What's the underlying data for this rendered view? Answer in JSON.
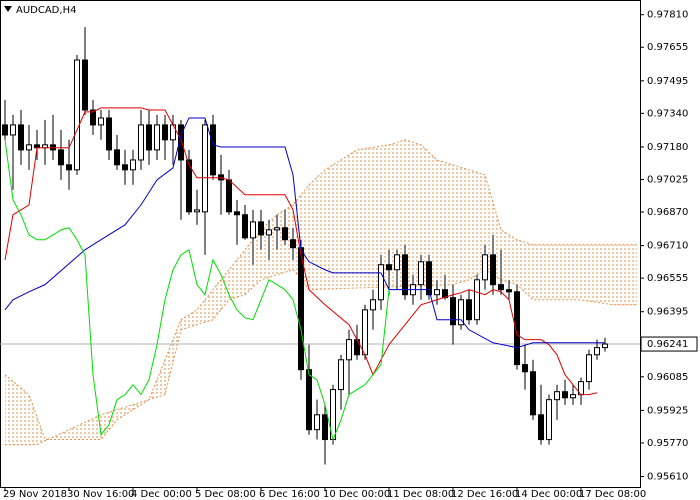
{
  "chart_data": {
    "type": "candlestick",
    "title": "AUDCAD,H4",
    "categories": [
      "29 Nov 2018",
      null,
      null,
      null,
      null,
      null,
      null,
      null,
      "30 Nov 16:00",
      null,
      null,
      null,
      null,
      null,
      null,
      null,
      "4 Dec 00:00",
      null,
      null,
      null,
      null,
      null,
      null,
      null,
      "5 Dec 08:00",
      null,
      null,
      null,
      null,
      null,
      null,
      null,
      "6 Dec 16:00",
      null,
      null,
      null,
      null,
      null,
      null,
      null,
      "10 Dec 00:00",
      null,
      null,
      null,
      null,
      null,
      null,
      null,
      "11 Dec 08:00",
      null,
      null,
      null,
      null,
      null,
      null,
      null,
      "12 Dec 16:00",
      null,
      null,
      null,
      null,
      null,
      null,
      null,
      "14 Dec 00:00",
      null,
      null,
      null,
      null,
      null,
      null,
      null,
      "17 Dec 08:00",
      null,
      null,
      null
    ],
    "ohlc": {
      "open": [
        0.97285,
        0.97237,
        0.97285,
        0.97166,
        0.9719,
        0.97176,
        0.9719,
        0.97166,
        0.97095,
        0.97071,
        0.97594,
        0.97356,
        0.97285,
        0.97318,
        0.97166,
        0.97095,
        0.97071,
        0.97118,
        0.97285,
        0.97166,
        0.97285,
        0.97214,
        0.97285,
        0.97118,
        0.96871,
        0.96871,
        0.97285,
        0.97047,
        0.97023,
        0.96871,
        0.96857,
        0.96747,
        0.96823,
        0.96761,
        0.96785,
        0.96795,
        0.96738,
        0.967,
        0.96119,
        0.95833,
        0.95904,
        0.95786,
        0.96024,
        0.96166,
        0.96262,
        0.9619,
        0.96404,
        0.96452,
        0.96619,
        0.96595,
        0.96666,
        0.96476,
        0.96524,
        0.96633,
        0.96476,
        0.965,
        0.96462,
        0.96333,
        0.96452,
        0.96357,
        0.96547,
        0.96666,
        0.96524,
        0.965,
        0.9649,
        0.96143,
        0.96109,
        0.95904,
        0.95786,
        0.95976,
        0.96014,
        0.95985,
        0.96,
        0.96062,
        0.9619,
        0.96224
      ],
      "high": [
        0.97404,
        0.97333,
        0.97356,
        0.97285,
        0.97261,
        0.97309,
        0.97333,
        0.97261,
        0.97214,
        0.97618,
        0.97751,
        0.97404,
        0.97356,
        0.97356,
        0.97237,
        0.97166,
        0.97166,
        0.97356,
        0.97356,
        0.97333,
        0.97333,
        0.97333,
        0.97309,
        0.97166,
        0.96976,
        0.97309,
        0.97333,
        0.97142,
        0.97071,
        0.96928,
        0.96904,
        0.9688,
        0.9688,
        0.96833,
        0.96857,
        0.9688,
        0.96795,
        0.96738,
        0.96238,
        0.95976,
        0.95952,
        0.96047,
        0.9619,
        0.96309,
        0.96333,
        0.96428,
        0.965,
        0.96666,
        0.9669,
        0.9669,
        0.96714,
        0.96571,
        0.96666,
        0.96666,
        0.96547,
        0.96571,
        0.96524,
        0.96476,
        0.965,
        0.96571,
        0.96714,
        0.96761,
        0.9669,
        0.96547,
        0.96524,
        0.96238,
        0.96166,
        0.96047,
        0.96,
        0.96047,
        0.96071,
        0.96047,
        0.96081,
        0.96214,
        0.96262,
        0.96271
      ],
      "low": [
        0.97214,
        0.96976,
        0.97095,
        0.97071,
        0.97118,
        0.97095,
        0.97118,
        0.97023,
        0.96976,
        0.97047,
        0.97333,
        0.97237,
        0.97214,
        0.97118,
        0.97071,
        0.96999,
        0.96999,
        0.97071,
        0.97095,
        0.97118,
        0.97118,
        0.97095,
        0.96833,
        0.96857,
        0.96809,
        0.96666,
        0.97023,
        0.96857,
        0.96857,
        0.96714,
        0.96738,
        0.96619,
        0.9669,
        0.96642,
        0.9669,
        0.96714,
        0.96642,
        0.96071,
        0.95809,
        0.95786,
        0.95667,
        0.95762,
        0.95928,
        0.96,
        0.96166,
        0.96166,
        0.96309,
        0.96404,
        0.96476,
        0.965,
        0.96452,
        0.96428,
        0.96452,
        0.96452,
        0.96428,
        0.96452,
        0.96238,
        0.96309,
        0.96333,
        0.96333,
        0.965,
        0.96476,
        0.96476,
        0.96452,
        0.96119,
        0.96024,
        0.9588,
        0.95762,
        0.95762,
        0.9588,
        0.95952,
        0.95952,
        0.95952,
        0.96024,
        0.96166,
        0.96205
      ],
      "close": [
        0.97237,
        0.97285,
        0.97166,
        0.9719,
        0.97176,
        0.9719,
        0.97166,
        0.97095,
        0.97071,
        0.97594,
        0.97356,
        0.97285,
        0.97318,
        0.97166,
        0.97095,
        0.97071,
        0.97118,
        0.97285,
        0.97166,
        0.97285,
        0.97214,
        0.97285,
        0.97118,
        0.96871,
        0.9688,
        0.97285,
        0.97047,
        0.97023,
        0.96871,
        0.96857,
        0.96747,
        0.96823,
        0.96761,
        0.96785,
        0.96795,
        0.96738,
        0.967,
        0.96119,
        0.95833,
        0.95904,
        0.95786,
        0.96024,
        0.96166,
        0.96262,
        0.9619,
        0.96404,
        0.96452,
        0.96619,
        0.96595,
        0.96666,
        0.96476,
        0.96524,
        0.96633,
        0.96476,
        0.965,
        0.96462,
        0.96333,
        0.96452,
        0.96357,
        0.96547,
        0.96666,
        0.96524,
        0.965,
        0.9649,
        0.96143,
        0.96109,
        0.95904,
        0.95786,
        0.95976,
        0.96014,
        0.95985,
        0.96,
        0.96062,
        0.9619,
        0.96224,
        0.96241
      ]
    },
    "lines": [
      {
        "color": "#e00000",
        "x": [
          0,
          1,
          2,
          3,
          4,
          8,
          9,
          10,
          11,
          12,
          17,
          18,
          20,
          21,
          22,
          23,
          24,
          27,
          28,
          30,
          35,
          36,
          37,
          38,
          40,
          43,
          44,
          45,
          46,
          47,
          48,
          50,
          52,
          54,
          56,
          57,
          58,
          60,
          61,
          62,
          63,
          64,
          65,
          67,
          68,
          69,
          70,
          71,
          72,
          73,
          74
        ],
        "values": [
          0.96642,
          0.96857,
          0.9688,
          0.96904,
          0.97176,
          0.97176,
          0.97261,
          0.97347,
          0.97347,
          0.97366,
          0.97366,
          0.97356,
          0.97356,
          0.97285,
          0.97214,
          0.97095,
          0.97033,
          0.97033,
          0.97023,
          0.96952,
          0.96952,
          0.9688,
          0.96666,
          0.965,
          0.96428,
          0.96333,
          0.96262,
          0.9619,
          0.96095,
          0.96166,
          0.96238,
          0.96333,
          0.96428,
          0.96452,
          0.96476,
          0.96485,
          0.965,
          0.96476,
          0.965,
          0.9649,
          0.96452,
          0.96285,
          0.96262,
          0.96262,
          0.96238,
          0.9619,
          0.96095,
          0.96047,
          0.96,
          0.96,
          0.96009
        ]
      },
      {
        "color": "#0000c8",
        "x": [
          0,
          1,
          3,
          5,
          10,
          12,
          15,
          17,
          19,
          21,
          22,
          23,
          25,
          26,
          27,
          35,
          36,
          37,
          38,
          40,
          41,
          47,
          48,
          53,
          54,
          57,
          58,
          61,
          64,
          66,
          75
        ],
        "values": [
          0.96404,
          0.96452,
          0.9649,
          0.96524,
          0.9669,
          0.96738,
          0.96809,
          0.96904,
          0.97023,
          0.9708,
          0.97237,
          0.97318,
          0.97318,
          0.9719,
          0.9718,
          0.9718,
          0.97047,
          0.9669,
          0.96633,
          0.96595,
          0.9658,
          0.9658,
          0.965,
          0.965,
          0.96357,
          0.96357,
          0.96309,
          0.96247,
          0.96224,
          0.96247,
          0.96247
        ]
      },
      {
        "color": "#00dd00",
        "values": [
          0.97214,
          0.96928,
          0.96857,
          0.96761,
          0.96738,
          0.96738,
          0.96761,
          0.96785,
          0.96795,
          0.96738,
          0.96666,
          0.96095,
          0.95809,
          0.95857,
          0.95976,
          0.96,
          0.96047,
          0.96,
          0.96071,
          0.96238,
          0.96452,
          0.96595,
          0.96666,
          0.9669,
          0.96524,
          0.96476,
          0.96642,
          0.96571,
          0.96476,
          0.96404,
          0.96366,
          0.96357,
          0.96452,
          0.96547,
          0.96524,
          0.965,
          0.96452,
          0.96309,
          0.96095,
          0.96071,
          0.95952,
          0.95786,
          0.9588,
          0.96,
          0.96024,
          0.96047,
          0.96095,
          0.96143,
          0.965
        ]
      }
    ],
    "cloud": {
      "color": "#e0904a",
      "span_a": {
        "x": [
          0,
          3,
          5,
          12,
          14,
          18,
          20,
          22,
          24,
          26,
          28,
          30,
          32,
          34,
          36,
          38,
          40,
          42,
          44,
          48,
          50,
          52,
          54,
          58,
          60,
          62,
          64,
          66,
          79
        ],
        "values": [
          0.96095,
          0.96,
          0.95786,
          0.95786,
          0.9588,
          0.95976,
          0.96166,
          0.96357,
          0.96404,
          0.965,
          0.96595,
          0.9669,
          0.96785,
          0.96857,
          0.96904,
          0.96999,
          0.97071,
          0.97118,
          0.97166,
          0.9719,
          0.97214,
          0.9719,
          0.97118,
          0.97071,
          0.97047,
          0.96785,
          0.96738,
          0.96714,
          0.96714
        ]
      },
      "span_b": {
        "x": [
          0,
          4,
          12,
          16,
          20,
          22,
          26,
          28,
          30,
          32,
          34,
          36,
          38,
          56,
          58,
          60,
          62,
          64,
          66,
          72,
          76,
          79
        ],
        "values": [
          0.95762,
          0.95762,
          0.95904,
          0.95952,
          0.96,
          0.96309,
          0.96357,
          0.96452,
          0.96476,
          0.96547,
          0.96571,
          0.96595,
          0.965,
          0.96524,
          0.96547,
          0.96595,
          0.96547,
          0.96524,
          0.96452,
          0.96452,
          0.96428,
          0.96428
        ]
      }
    },
    "ylim": [
      0.9556,
      0.9788
    ],
    "yticks": [
      {
        "value": 0.9781,
        "label": "0.97810"
      },
      {
        "value": 0.97655,
        "label": "0.97655"
      },
      {
        "value": 0.97495,
        "label": "0.97495"
      },
      {
        "value": 0.9734,
        "label": "0.97340"
      },
      {
        "value": 0.9718,
        "label": "0.97180"
      },
      {
        "value": 0.97025,
        "label": "0.97025"
      },
      {
        "value": 0.9687,
        "label": "0.96870"
      },
      {
        "value": 0.9671,
        "label": "0.96710"
      },
      {
        "value": 0.96555,
        "label": "0.96555"
      },
      {
        "value": 0.96395,
        "label": "0.96395"
      },
      {
        "value": 0.96085,
        "label": "0.96085"
      },
      {
        "value": 0.95925,
        "label": "0.95925"
      },
      {
        "value": 0.9577,
        "label": "0.95770"
      },
      {
        "value": 0.9561,
        "label": "0.95610"
      }
    ],
    "last_price": {
      "value": 0.96241,
      "label": "0.96241"
    },
    "grid": false
  }
}
